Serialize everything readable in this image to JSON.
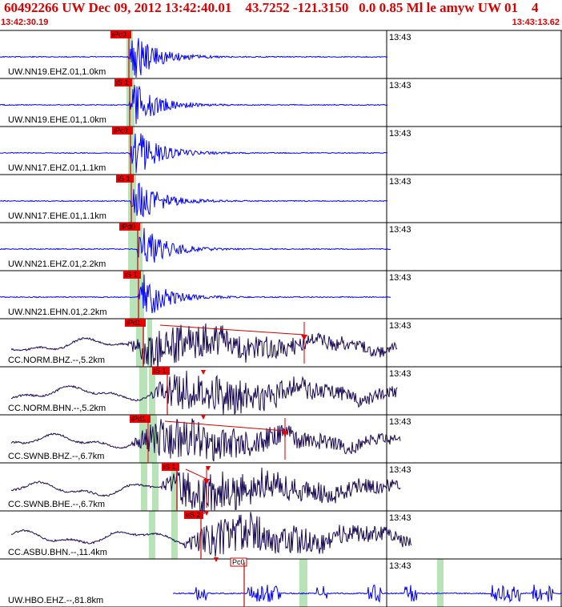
{
  "header": {
    "title": "60492266 UW Dec 09, 2012 13:42:40.01    43.7252 -121.3150   0.0 0.85 Ml le amyw UW 01    4",
    "time_start": "13:42:30.19",
    "time_end": "13:43:13.62"
  },
  "colors": {
    "header_text": "#dd0000",
    "trace_short_period": "#0000ff",
    "trace_broadband": "#1a0a55",
    "pick_box": "#ee0000",
    "pick_line": "#cc0000",
    "pick_window": "#b7e3b7"
  },
  "chart_data": {
    "type": "line",
    "title": "60492266 UW Dec 09, 2012 13:42:40.01    43.7252 -121.3150   0.0 0.85 Ml le amyw UW 01    4",
    "x_range": [
      "13:42:30.19",
      "13:43:13.62"
    ],
    "minute_tick": "13:43",
    "channels": [
      {
        "label": "UW.NN19.EHZ.01,1.0km",
        "pick": "iPc0",
        "tick": "13:43"
      },
      {
        "label": "UW.NN19.EHE.01,1.0km",
        "pick": "iS 1",
        "tick": "13:43"
      },
      {
        "label": "UW.NN17.EHZ.01,1.1km",
        "pick": "iPc0",
        "tick": "13:43"
      },
      {
        "label": "UW.NN17.EHE.01,1.1km",
        "pick": "iS 1",
        "tick": "13:43"
      },
      {
        "label": "UW.NN21.EHZ.01,2.2km",
        "pick": "iPd0",
        "tick": "13:43"
      },
      {
        "label": "UW.NN21.EHN.01,2.2km",
        "pick": "iS 1",
        "tick": "13:43"
      },
      {
        "label": "CC.NORM.BHZ.--,5.2km",
        "pick": "iPd1",
        "tick": "13:43"
      },
      {
        "label": "CC.NORM.BHN.--,5.2km",
        "pick": "iS 1",
        "tick": "13:43"
      },
      {
        "label": "CC.SWNB.BHZ.--,6.7km",
        "pick": "iPd1",
        "tick": "13:43"
      },
      {
        "label": "CC.SWNB.BHE.--,6.7km",
        "pick": "iS 1",
        "tick": "13:43"
      },
      {
        "label": "CC.ASBU.BHN.--,11.4km",
        "pick": "eS 2",
        "tick": "13:43"
      },
      {
        "label": "UW.HBO.EHZ.--,81.8km",
        "pick": "Pc0",
        "tick": "13:43"
      }
    ]
  }
}
